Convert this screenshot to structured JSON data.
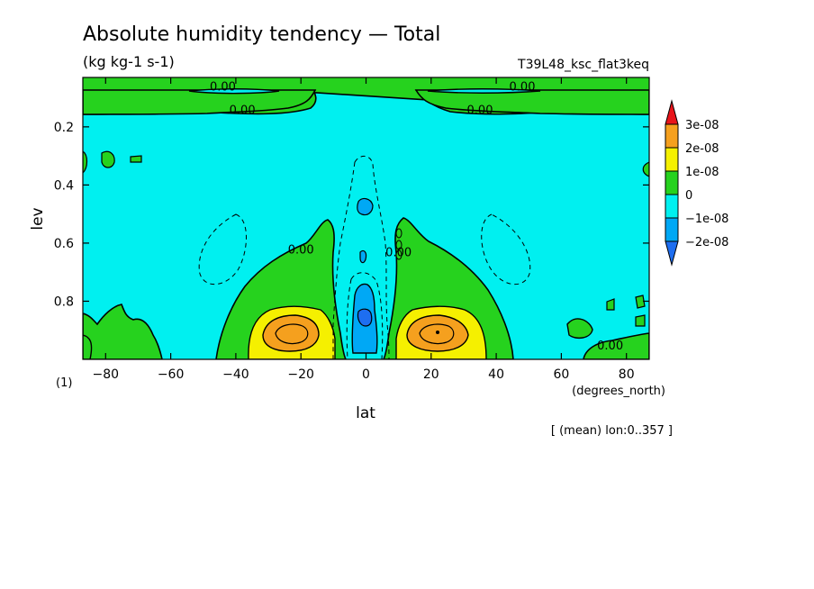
{
  "chart_data": {
    "type": "heatmap",
    "title": "Absolute humidity tendency — Total",
    "subtitle": "(kg kg-1 s-1)",
    "run_label": "T39L48_ksc_flat3keq",
    "xlabel": "lat",
    "xunits": "(degrees_north)",
    "ylabel": "lev",
    "yunits": "(1)",
    "footnote": "[ (mean) lon:0..357 ]",
    "xlim": [
      -87,
      87
    ],
    "ylim": [
      1.0,
      0.03
    ],
    "x_ticks": [
      -80,
      -60,
      -40,
      -20,
      0,
      20,
      40,
      60,
      80
    ],
    "x_tick_labels": [
      "−80",
      "−60",
      "−40",
      "−20",
      "0",
      "20",
      "40",
      "60",
      "80"
    ],
    "y_ticks": [
      0.2,
      0.4,
      0.6,
      0.8
    ],
    "y_tick_labels": [
      "0.2",
      "0.4",
      "0.6",
      "0.8"
    ],
    "contour_labels": [
      {
        "text": "0.00",
        "x": -44,
        "y": 0.06
      },
      {
        "text": "0.00",
        "x": -38,
        "y": 0.14
      },
      {
        "text": "0.00",
        "x": 48,
        "y": 0.06
      },
      {
        "text": "0.00",
        "x": 35,
        "y": 0.14
      },
      {
        "text": "0.00",
        "x": -20,
        "y": 0.62
      },
      {
        "text": "0.00",
        "x": 10,
        "y": 0.63
      },
      {
        "text": "0.00",
        "x": 75,
        "y": 0.95
      }
    ],
    "colorbar": {
      "labels": [
        "3e-08",
        "2e-08",
        "1e-08",
        "0",
        "−1e-08",
        "−2e-08"
      ],
      "bins": [
        {
          "range": "> 3e-08",
          "color": "#e8141a"
        },
        {
          "range": "2e-08 to 3e-08",
          "color": "#f5a01e"
        },
        {
          "range": "1e-08 to 2e-08",
          "color": "#f5f000"
        },
        {
          "range": "0 to 1e-08",
          "color": "#26d21e"
        },
        {
          "range": "-1e-08 to 0",
          "color": "#00f0f0"
        },
        {
          "range": "-2e-08 to -1e-08",
          "color": "#00a8f5"
        },
        {
          "range": "< -2e-08",
          "color": "#1e6ef0"
        }
      ]
    },
    "features": [
      {
        "sign": "positive",
        "max": 3e-08,
        "lat": -22,
        "lev": 0.9,
        "desc": "subtropical max south"
      },
      {
        "sign": "positive",
        "max": 3e-08,
        "lat": 22,
        "lev": 0.9,
        "desc": "subtropical max north"
      },
      {
        "sign": "negative",
        "min": -2e-08,
        "lat": 0,
        "lev": 0.85,
        "desc": "equatorial drying"
      },
      {
        "sign": "positive",
        "lat_range": [
          -87,
          87
        ],
        "lev_range": [
          0.03,
          0.12
        ],
        "desc": "upper-level positive band"
      }
    ]
  },
  "colors": {
    "band_gt3": "#e8141a",
    "band_2_3": "#f5a01e",
    "band_1_2": "#f5f000",
    "band_0_1": "#26d21e",
    "band_m1_0": "#00f0f0",
    "band_m2_m1": "#00a8f5",
    "band_lt_m2": "#1e6ef0"
  }
}
